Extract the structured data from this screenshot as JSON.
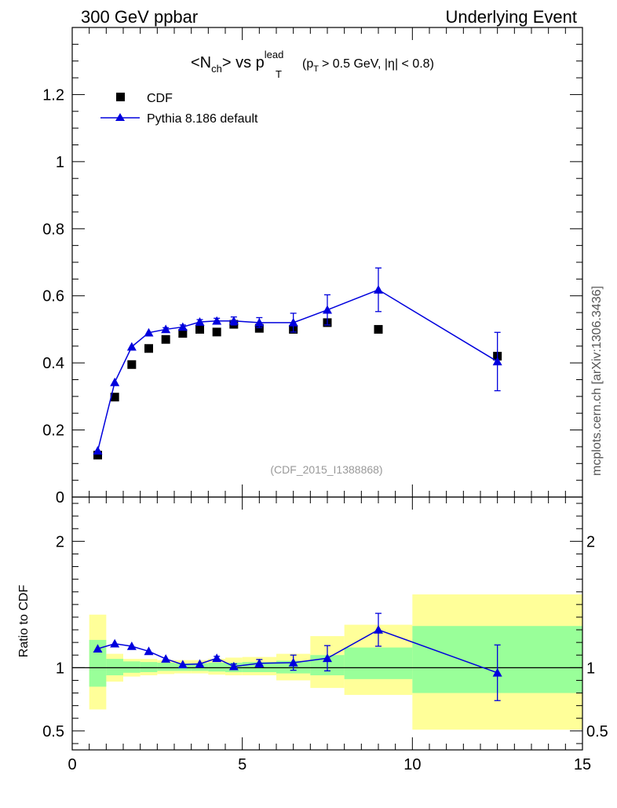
{
  "header": {
    "left": "300 GeV ppbar",
    "right": "Underlying Event"
  },
  "plot_title": {
    "main": "<N",
    "sub1": "ch",
    "mid": "> vs p",
    "sup": "lead",
    "sub2": "T",
    "cut_a": "(p",
    "cut_sub": "T",
    "cut_b": "> 0.5 GeV, |η| < 0.8)"
  },
  "watermark": "(CDF_2015_I1388868)",
  "side_label": "mcplots.cern.ch [arXiv:1306.3436]",
  "ratio_ylabel": "Ratio to CDF",
  "colors": {
    "data": "#000000",
    "mc": "#0000dd",
    "band_inner": "#99ff99",
    "band_outer": "#ffff99"
  },
  "chart_data": [
    {
      "type": "scatter",
      "panel": "main",
      "xlim": [
        0,
        15
      ],
      "ylim": [
        0,
        1.4
      ],
      "yticks": [
        0,
        0.2,
        0.4,
        0.6,
        0.8,
        1,
        1.2
      ],
      "ytick_labels": [
        "0",
        "0.2",
        "0.4",
        "0.6",
        "0.8",
        "1",
        "1.2"
      ],
      "legend_position": "top-left",
      "series": [
        {
          "name": "CDF",
          "marker": "square",
          "x": [
            0.75,
            1.25,
            1.75,
            2.25,
            2.75,
            3.25,
            3.75,
            4.25,
            4.75,
            5.5,
            6.5,
            7.5,
            9.0,
            12.5
          ],
          "y": [
            0.125,
            0.298,
            0.395,
            0.443,
            0.47,
            0.488,
            0.5,
            0.492,
            0.515,
            0.503,
            0.5,
            0.52,
            0.5,
            0.42
          ]
        },
        {
          "name": "Pythia 8.186 default",
          "marker": "triangle",
          "x": [
            0.75,
            1.25,
            1.75,
            2.25,
            2.75,
            3.25,
            3.75,
            4.25,
            4.75,
            5.5,
            6.5,
            7.5,
            9.0,
            12.5
          ],
          "y": [
            0.138,
            0.342,
            0.448,
            0.49,
            0.5,
            0.507,
            0.522,
            0.525,
            0.525,
            0.52,
            0.52,
            0.558,
            0.618,
            0.404
          ],
          "yerr": [
            0.002,
            0.003,
            0.004,
            0.004,
            0.005,
            0.006,
            0.007,
            0.008,
            0.012,
            0.015,
            0.028,
            0.045,
            0.065,
            0.087
          ]
        }
      ]
    },
    {
      "type": "scatter",
      "panel": "ratio",
      "ylabel": "Ratio to CDF",
      "xlim": [
        0,
        15
      ],
      "ylim": [
        0.35,
        2.35
      ],
      "xticks": [
        0,
        5,
        10,
        15
      ],
      "xtick_labels": [
        "0",
        "5",
        "10",
        "15"
      ],
      "yticks": [
        0.5,
        1,
        2
      ],
      "ytick_labels": [
        "0.5",
        "1",
        "2"
      ],
      "reference_line": 1,
      "bands": {
        "bins": [
          [
            0.5,
            1.0
          ],
          [
            1.0,
            1.5
          ],
          [
            1.5,
            2.0
          ],
          [
            2.0,
            2.5
          ],
          [
            2.5,
            3.0
          ],
          [
            3.0,
            3.5
          ],
          [
            3.5,
            4.0
          ],
          [
            4.0,
            4.5
          ],
          [
            4.5,
            5.0
          ],
          [
            5.0,
            6.0
          ],
          [
            6.0,
            7.0
          ],
          [
            7.0,
            8.0
          ],
          [
            8.0,
            10.0
          ],
          [
            10.0,
            15.0
          ]
        ],
        "inner_low": [
          0.85,
          0.94,
          0.96,
          0.965,
          0.975,
          0.975,
          0.975,
          0.97,
          0.965,
          0.965,
          0.955,
          0.94,
          0.91,
          0.8
        ],
        "inner_high": [
          1.22,
          1.07,
          1.05,
          1.045,
          1.04,
          1.035,
          1.035,
          1.04,
          1.04,
          1.045,
          1.055,
          1.1,
          1.16,
          1.33
        ],
        "outer_low": [
          0.67,
          0.89,
          0.93,
          0.94,
          0.95,
          0.955,
          0.955,
          0.945,
          0.94,
          0.94,
          0.9,
          0.84,
          0.785,
          0.51
        ],
        "outer_high": [
          1.42,
          1.11,
          1.07,
          1.07,
          1.06,
          1.06,
          1.06,
          1.07,
          1.08,
          1.085,
          1.11,
          1.25,
          1.34,
          1.58
        ]
      },
      "series": [
        {
          "name": "Pythia 8.186 default",
          "marker": "triangle",
          "x": [
            0.75,
            1.25,
            1.75,
            2.25,
            2.75,
            3.25,
            3.75,
            4.25,
            4.75,
            5.5,
            6.5,
            7.5,
            9.0,
            12.5
          ],
          "y": [
            1.15,
            1.19,
            1.17,
            1.13,
            1.07,
            1.025,
            1.03,
            1.075,
            1.01,
            1.035,
            1.04,
            1.075,
            1.3,
            0.96
          ],
          "yerr": [
            0.005,
            0.005,
            0.005,
            0.005,
            0.005,
            0.005,
            0.01,
            0.015,
            0.02,
            0.03,
            0.06,
            0.1,
            0.13,
            0.22
          ]
        }
      ]
    }
  ]
}
